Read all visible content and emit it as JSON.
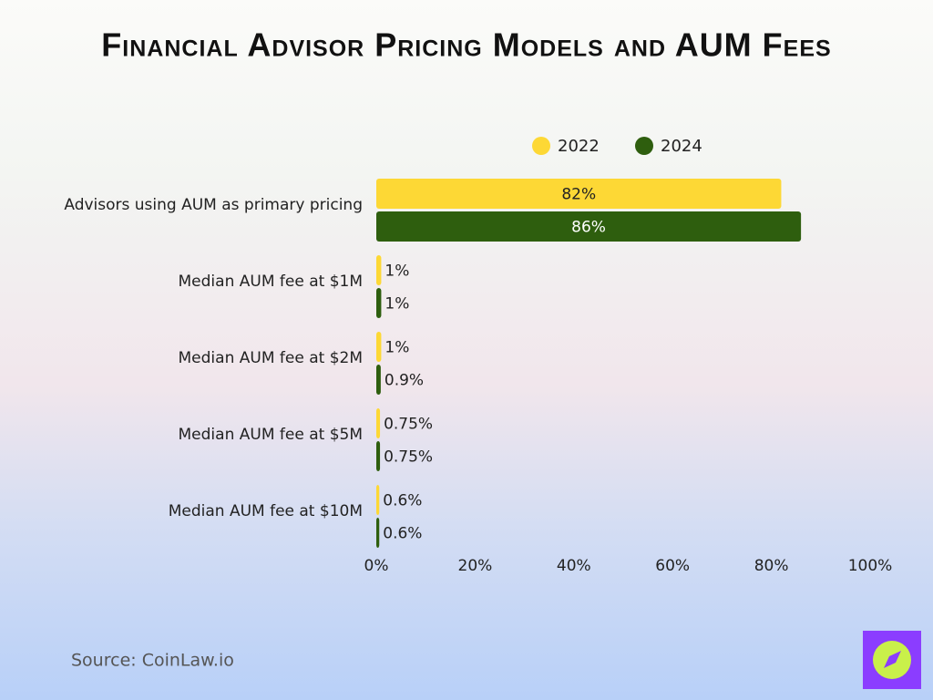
{
  "chart_data": {
    "type": "bar",
    "orientation": "horizontal",
    "title": "Financial Advisor Pricing Models and AUM Fees",
    "categories": [
      "Advisors using AUM as primary pricing",
      "Median AUM fee at $1M",
      "Median AUM fee at $2M",
      "Median AUM fee at $5M",
      "Median AUM fee at $10M"
    ],
    "series": [
      {
        "name": "2022",
        "color": "#fdd835",
        "values": [
          82,
          1,
          1,
          0.75,
          0.6
        ],
        "value_labels": [
          "82%",
          "1%",
          "1%",
          "0.75%",
          "0.6%"
        ]
      },
      {
        "name": "2024",
        "color": "#2e5e0e",
        "values": [
          86,
          1,
          0.9,
          0.75,
          0.6
        ],
        "value_labels": [
          "86%",
          "1%",
          "0.9%",
          "0.75%",
          "0.6%"
        ]
      }
    ],
    "xlim": [
      0,
      100
    ],
    "xticks": [
      {
        "value": 0,
        "label": "0%"
      },
      {
        "value": 20,
        "label": "20%"
      },
      {
        "value": 40,
        "label": "40%"
      },
      {
        "value": 60,
        "label": "60%"
      },
      {
        "value": 80,
        "label": "80%"
      },
      {
        "value": 100,
        "label": "100%"
      }
    ],
    "grid": false,
    "legend": "top",
    "source": "Source: CoinLaw.io"
  }
}
